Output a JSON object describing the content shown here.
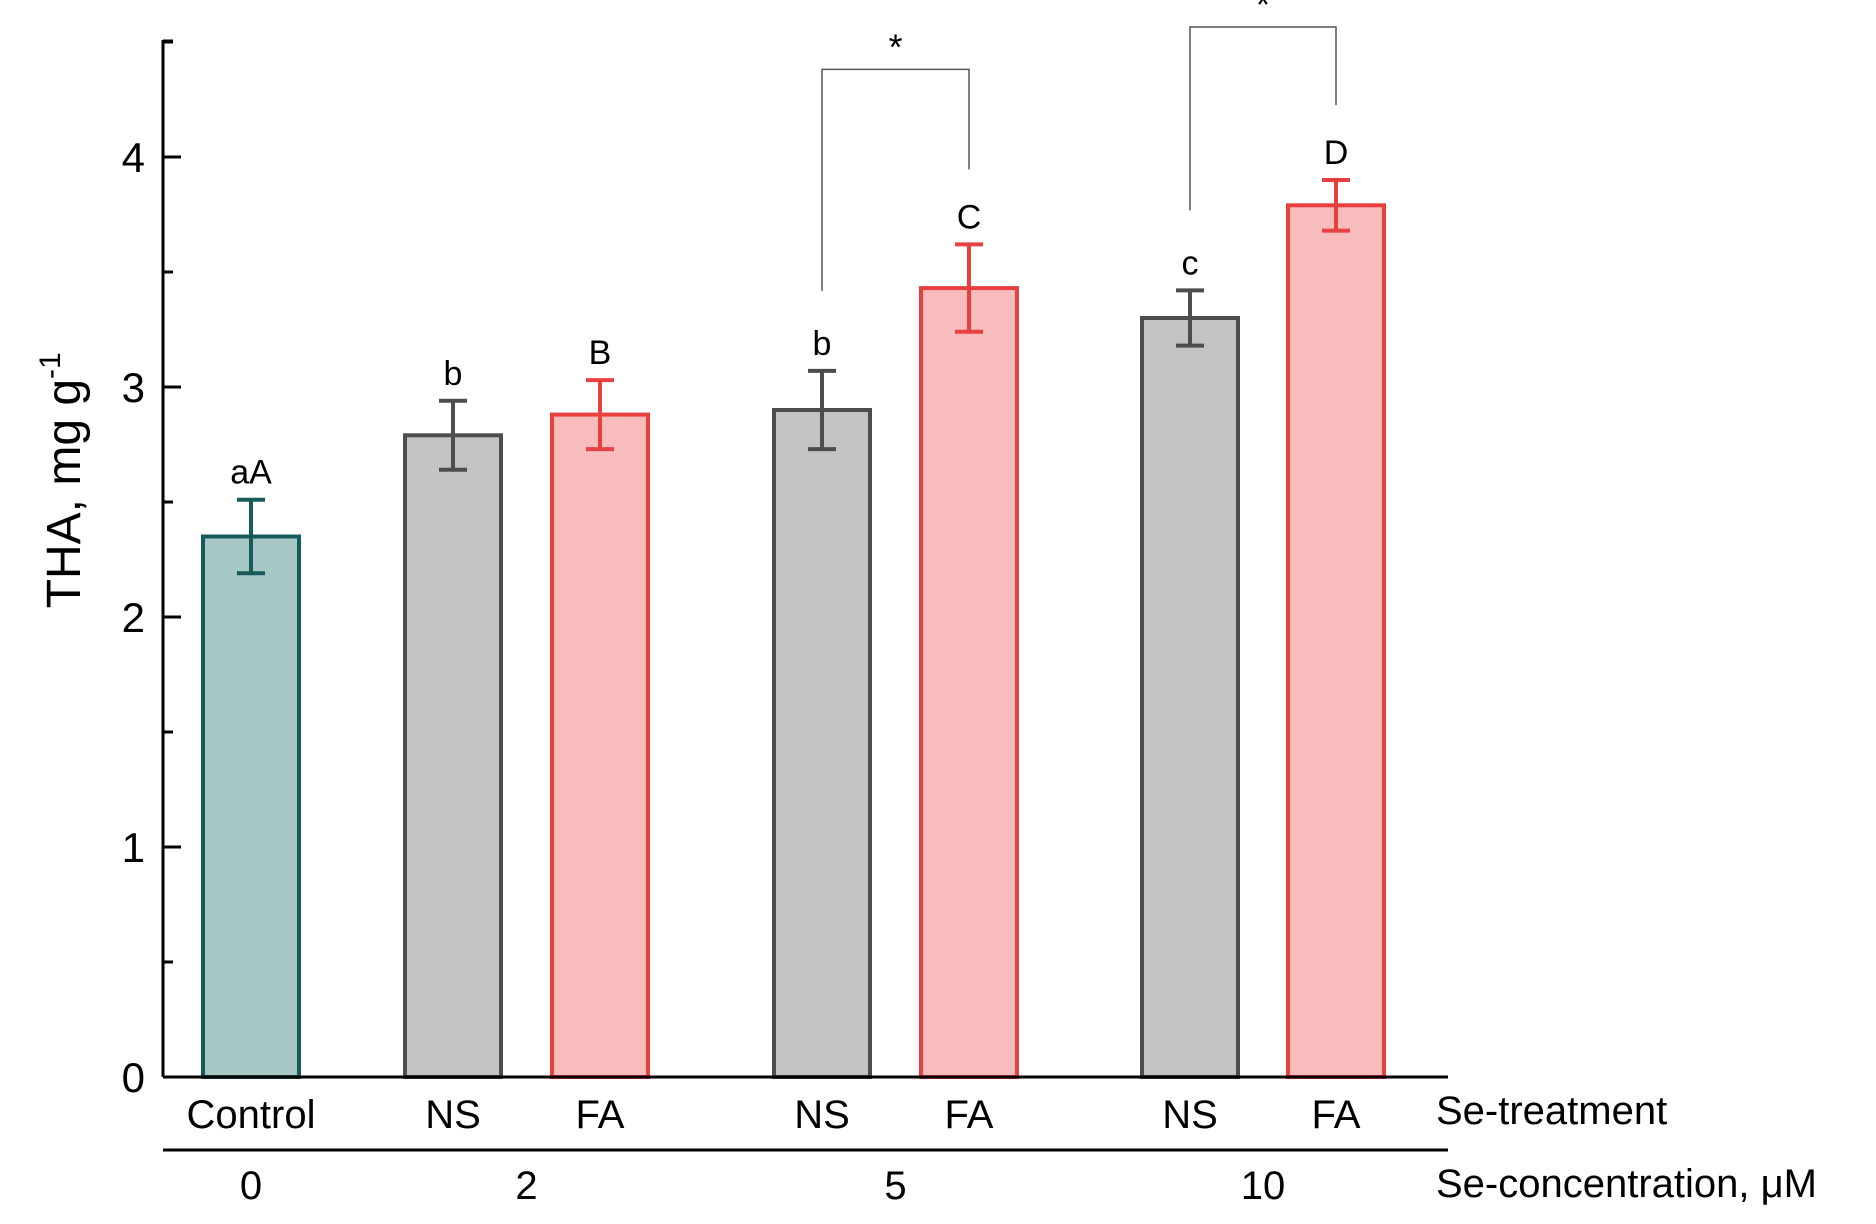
{
  "chart_data": {
    "type": "bar",
    "ylabel": "THA, mg g",
    "ylabel_superscript": "-1",
    "ylim": [
      0,
      4.5
    ],
    "yticks": [
      0,
      1,
      2,
      3,
      4
    ],
    "yticks_labels": [
      "0",
      "1",
      "2",
      "3",
      "4"
    ],
    "grid": false,
    "bars": [
      {
        "treatment": "Control",
        "concentration": "0",
        "value": 2.35,
        "error": 0.16,
        "letter": "aA",
        "color": "teal"
      },
      {
        "treatment": "NS",
        "concentration": "2",
        "value": 2.79,
        "error": 0.15,
        "letter": "b",
        "color": "gray"
      },
      {
        "treatment": "FA",
        "concentration": "2",
        "value": 2.88,
        "error": 0.15,
        "letter": "B",
        "color": "red"
      },
      {
        "treatment": "NS",
        "concentration": "5",
        "value": 2.9,
        "error": 0.17,
        "letter": "b",
        "color": "gray"
      },
      {
        "treatment": "FA",
        "concentration": "5",
        "value": 3.43,
        "error": 0.19,
        "letter": "C",
        "color": "red"
      },
      {
        "treatment": "NS",
        "concentration": "10",
        "value": 3.3,
        "error": 0.12,
        "letter": "c",
        "color": "gray"
      },
      {
        "treatment": "FA",
        "concentration": "10",
        "value": 3.79,
        "error": 0.11,
        "letter": "D",
        "color": "red"
      }
    ],
    "concentrations": [
      {
        "label": "0",
        "bars": [
          0
        ]
      },
      {
        "label": "2",
        "bars": [
          1,
          2
        ]
      },
      {
        "label": "5",
        "bars": [
          3,
          4
        ]
      },
      {
        "label": "10",
        "bars": [
          5,
          6
        ]
      }
    ],
    "significance": [
      {
        "from": 3,
        "to": 4,
        "label": "*"
      },
      {
        "from": 5,
        "to": 6,
        "label": "*"
      }
    ],
    "row_labels": {
      "treatment": "Se-treatment",
      "concentration": "Se-concentration, μM"
    },
    "colors": {
      "teal": {
        "fill": "#a7c7c5",
        "stroke": "#165a5a"
      },
      "gray": {
        "fill": "#c3c3c3",
        "stroke": "#4d4d4d"
      },
      "red": {
        "fill": "#f9bcbd",
        "stroke": "#e8403f"
      },
      "axis": "#000000"
    }
  }
}
